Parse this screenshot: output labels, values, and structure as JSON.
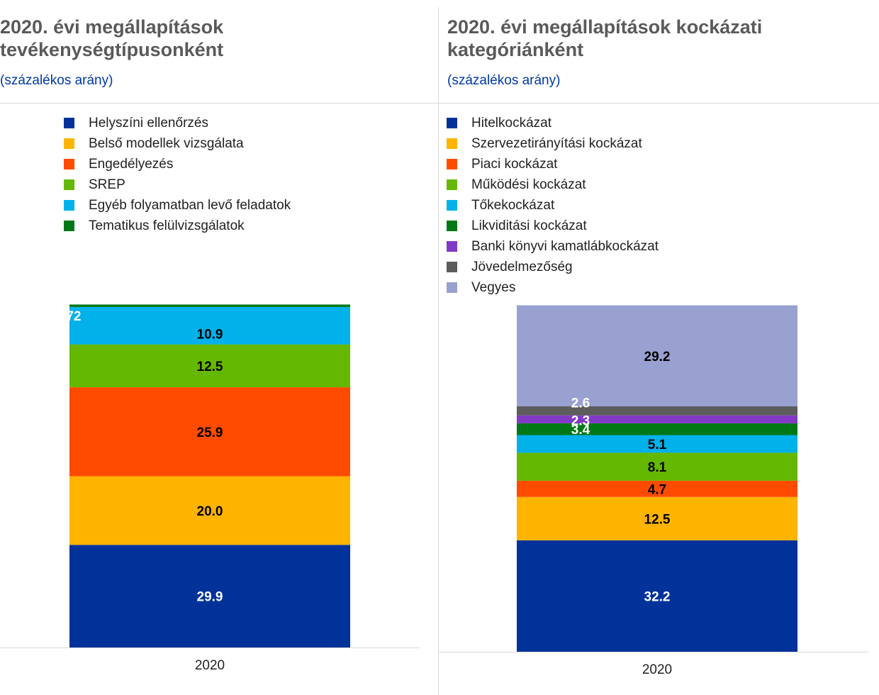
{
  "chart_data": [
    {
      "type": "bar",
      "stacked": true,
      "title": "2020. évi megállapítások tevékenységtípusonként",
      "subtitle": "(százalékos arány)",
      "categories": [
        "2020"
      ],
      "ylim": [
        0,
        100
      ],
      "grid": false,
      "legend_position": "top-left",
      "series": [
        {
          "name": "Helyszíni ellenőrzés",
          "values": [
            29.9
          ],
          "label": "29.9",
          "color": "#003299",
          "label_color": "#ffffff"
        },
        {
          "name": "Belső modellek vizsgálata",
          "values": [
            20.0
          ],
          "label": "20.0",
          "color": "#ffb400",
          "label_color": "#000000"
        },
        {
          "name": "Engedélyezés",
          "values": [
            25.9
          ],
          "label": "25.9",
          "color": "#ff4b00",
          "label_color": "#000000"
        },
        {
          "name": "SREP",
          "values": [
            12.5
          ],
          "label": "12.5",
          "color": "#65b800",
          "label_color": "#000000"
        },
        {
          "name": "Egyéb folyamatban levő feladatok",
          "values": [
            10.9
          ],
          "label": "10.9",
          "color": "#00b1ea",
          "label_color": "#000000"
        },
        {
          "name": "Tematikus felülvizsgálatok",
          "values": [
            0.72
          ],
          "label": "0.72",
          "color": "#007816",
          "label_color": "#ffffff"
        }
      ]
    },
    {
      "type": "bar",
      "stacked": true,
      "title": "2020. évi megállapítások kockázati kategóriánként",
      "subtitle": "(százalékos arány)",
      "categories": [
        "2020"
      ],
      "ylim": [
        0,
        100
      ],
      "grid": false,
      "legend_position": "top-left",
      "series": [
        {
          "name": "Hitelkockázat",
          "values": [
            32.2
          ],
          "label": "32.2",
          "color": "#003299",
          "label_color": "#ffffff"
        },
        {
          "name": "Szervezetirányítási kockázat",
          "values": [
            12.5
          ],
          "label": "12.5",
          "color": "#ffb400",
          "label_color": "#000000"
        },
        {
          "name": "Piaci kockázat",
          "values": [
            4.7
          ],
          "label": "4.7",
          "color": "#ff4b00",
          "label_color": "#000000"
        },
        {
          "name": "Működési kockázat",
          "values": [
            8.1
          ],
          "label": "8.1",
          "color": "#65b800",
          "label_color": "#000000"
        },
        {
          "name": "Tőkekockázat",
          "values": [
            5.1
          ],
          "label": "5.1",
          "color": "#00b1ea",
          "label_color": "#000000"
        },
        {
          "name": "Likviditási kockázat",
          "values": [
            3.4
          ],
          "label": "3.4",
          "color": "#007816",
          "label_color": "#ffffff"
        },
        {
          "name": "Banki könyvi kamatlábkockázat",
          "values": [
            2.3
          ],
          "label": "2.3",
          "color": "#8139c6",
          "label_color": "#ffffff"
        },
        {
          "name": "Jövedelmezőség",
          "values": [
            2.6
          ],
          "label": "2.6",
          "color": "#5c5c5c",
          "label_color": "#ffffff"
        },
        {
          "name": "Vegyes",
          "values": [
            29.2
          ],
          "label": "29.2",
          "color": "#98a1d0",
          "label_color": "#000000"
        }
      ]
    }
  ]
}
